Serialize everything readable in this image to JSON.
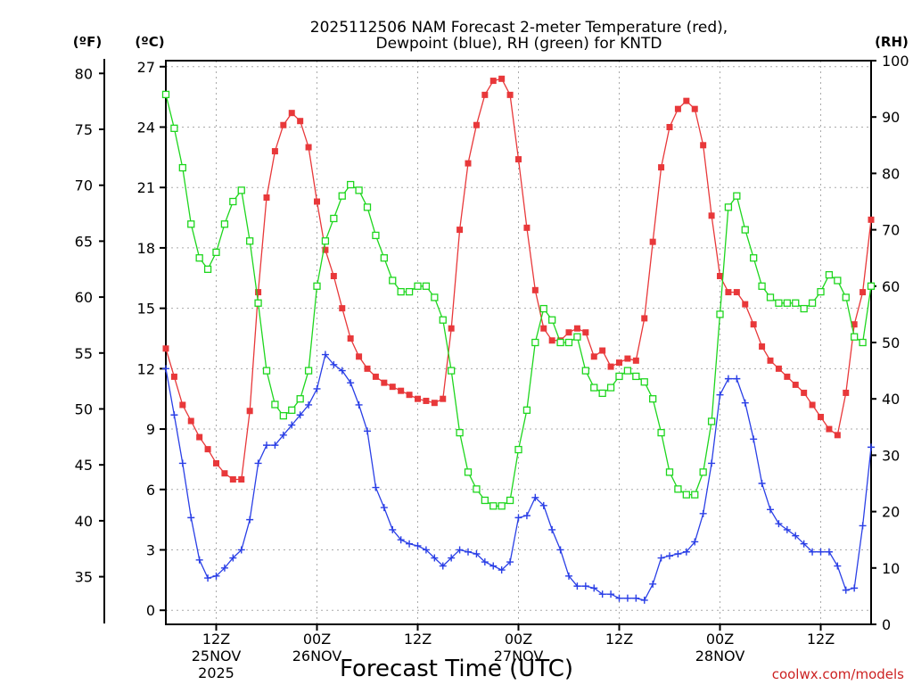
{
  "chart_data": {
    "type": "line",
    "title": [
      "2025112506 NAM Forecast 2-meter Temperature (red),",
      "Dewpoint (blue), RH (green) for KNTD"
    ],
    "xlabel": "Forecast Time (UTC)",
    "credit": "coolwx.com/models",
    "unit_labels": {
      "fahrenheit": "(ºF)",
      "celsius": "(ºC)",
      "rh": "(RH)"
    },
    "x_hour_range": [
      6,
      90
    ],
    "x_ticks": [
      {
        "hour": 12,
        "label": "12Z",
        "date": "25NOV",
        "year": "2025"
      },
      {
        "hour": 24,
        "label": "00Z",
        "date": "26NOV",
        "year": ""
      },
      {
        "hour": 36,
        "label": "12Z",
        "date": "",
        "year": ""
      },
      {
        "hour": 48,
        "label": "00Z",
        "date": "27NOV",
        "year": ""
      },
      {
        "hour": 60,
        "label": "12Z",
        "date": "",
        "year": ""
      },
      {
        "hour": 72,
        "label": "00Z",
        "date": "28NOV",
        "year": ""
      },
      {
        "hour": 84,
        "label": "12Z",
        "date": "",
        "year": ""
      }
    ],
    "celsius_axis": {
      "range": [
        -0.7,
        27.3
      ],
      "ticks": [
        0,
        3,
        6,
        9,
        12,
        15,
        18,
        21,
        24,
        27
      ]
    },
    "fahrenheit_axis": {
      "ticks": [
        35,
        40,
        45,
        50,
        55,
        60,
        65,
        70,
        75,
        80
      ]
    },
    "rh_axis": {
      "range": [
        0,
        100
      ],
      "ticks": [
        0,
        10,
        20,
        30,
        40,
        50,
        60,
        70,
        80,
        90,
        100
      ]
    },
    "colors": {
      "temperature": "#e8383a",
      "dewpoint": "#2a3fe6",
      "rh": "#1ed61e",
      "grid": "#aaaaaa",
      "axis": "#000000",
      "credit": "#cc2222"
    },
    "series": [
      {
        "name": "Temperature",
        "unit": "C",
        "marker": "filled-square",
        "color": "#e8383a",
        "values": [
          13.0,
          11.6,
          10.2,
          9.4,
          8.6,
          8.0,
          7.3,
          6.8,
          6.5,
          6.5,
          9.9,
          15.8,
          20.5,
          22.8,
          24.1,
          24.7,
          24.3,
          23.0,
          20.3,
          17.9,
          16.6,
          15.0,
          13.5,
          12.6,
          12.0,
          11.6,
          11.3,
          11.1,
          10.9,
          10.7,
          10.5,
          10.4,
          10.3,
          10.5,
          14.0,
          18.9,
          22.2,
          24.1,
          25.6,
          26.3,
          26.4,
          25.6,
          22.4,
          19.0,
          15.9,
          14.0,
          13.4,
          13.4,
          13.8,
          14.0,
          13.8,
          12.6,
          12.9,
          12.1,
          12.3,
          12.5,
          12.4,
          14.5,
          18.3,
          22.0,
          24.0,
          24.9,
          25.3,
          24.9,
          23.1,
          19.6,
          16.6,
          15.8,
          15.8,
          15.2,
          14.2,
          13.1,
          12.4,
          12.0,
          11.6,
          11.2,
          10.8,
          10.2,
          9.6,
          9.0,
          8.7,
          10.8,
          14.2,
          15.8,
          19.4
        ]
      },
      {
        "name": "Dewpoint",
        "unit": "C",
        "marker": "plus",
        "color": "#2a3fe6",
        "values": [
          12.0,
          9.7,
          7.3,
          4.6,
          2.5,
          1.6,
          1.7,
          2.1,
          2.6,
          3.0,
          4.5,
          7.3,
          8.2,
          8.2,
          8.7,
          9.2,
          9.7,
          10.2,
          11.0,
          12.7,
          12.2,
          11.9,
          11.3,
          10.2,
          8.9,
          6.1,
          5.1,
          4.0,
          3.5,
          3.3,
          3.2,
          3.0,
          2.6,
          2.2,
          2.6,
          3.0,
          2.9,
          2.8,
          2.4,
          2.2,
          2.0,
          2.4,
          4.6,
          4.7,
          5.6,
          5.2,
          4.0,
          3.0,
          1.7,
          1.2,
          1.2,
          1.1,
          0.8,
          0.8,
          0.6,
          0.6,
          0.6,
          0.5,
          1.3,
          2.6,
          2.7,
          2.8,
          2.9,
          3.4,
          4.8,
          7.3,
          10.7,
          11.5,
          11.5,
          10.3,
          8.5,
          6.3,
          5.0,
          4.3,
          4.0,
          3.7,
          3.3,
          2.9,
          2.9,
          2.9,
          2.2,
          1.0,
          1.1,
          4.2,
          8.1
        ]
      },
      {
        "name": "RH",
        "unit": "%",
        "marker": "open-square",
        "color": "#1ed61e",
        "values": [
          94,
          88,
          81,
          71,
          65,
          63,
          66,
          71,
          75,
          77,
          68,
          57,
          45,
          39,
          37,
          38,
          40,
          45,
          60,
          68,
          72,
          76,
          78,
          77,
          74,
          69,
          65,
          61,
          59,
          59,
          60,
          60,
          58,
          54,
          45,
          34,
          27,
          24,
          22,
          21,
          21,
          22,
          31,
          38,
          50,
          56,
          54,
          50,
          50,
          51,
          45,
          42,
          41,
          42,
          44,
          45,
          44,
          43,
          40,
          34,
          27,
          24,
          23,
          23,
          27,
          36,
          55,
          74,
          76,
          70,
          65,
          60,
          58,
          57,
          57,
          57,
          56,
          57,
          59,
          62,
          61,
          58,
          51,
          50,
          60
        ]
      }
    ]
  }
}
